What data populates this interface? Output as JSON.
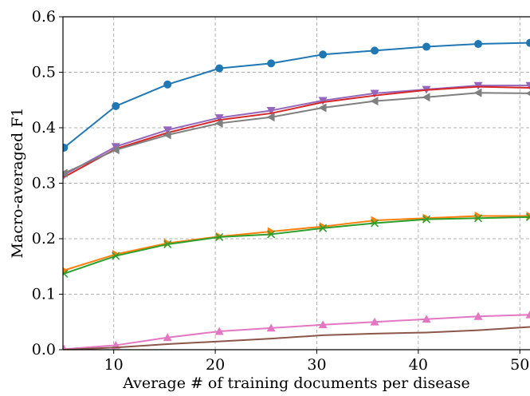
{
  "chart_data": {
    "type": "line",
    "xlabel": "Average # of training documents per disease",
    "ylabel": "Macro-averaged F1",
    "xlim": [
      5,
      51
    ],
    "ylim": [
      0,
      0.6
    ],
    "grid": true,
    "x_ticks": [
      10,
      20,
      30,
      40,
      50
    ],
    "y_ticks": [
      0.0,
      0.1,
      0.2,
      0.3,
      0.4,
      0.5,
      0.6
    ],
    "x_tick_labels": [
      "10",
      "20",
      "30",
      "40",
      "50"
    ],
    "y_tick_labels": [
      "0.0",
      "0.1",
      "0.2",
      "0.3",
      "0.4",
      "0.5",
      "0.6"
    ],
    "x": [
      5.1,
      10.2,
      15.3,
      20.4,
      25.5,
      30.6,
      35.7,
      40.8,
      45.9,
      51.0
    ],
    "series": [
      {
        "color": "#1f77b4",
        "marker": "circle",
        "values": [
          0.364,
          0.439,
          0.478,
          0.507,
          0.516,
          0.532,
          0.539,
          0.546,
          0.551,
          0.553
        ]
      },
      {
        "color": "#9467bd",
        "marker": "triangle-down",
        "values": [
          0.315,
          0.366,
          0.396,
          0.418,
          0.431,
          0.449,
          0.462,
          0.469,
          0.476,
          0.476
        ]
      },
      {
        "color": "#d62728",
        "marker": "none",
        "values": [
          0.311,
          0.362,
          0.391,
          0.414,
          0.426,
          0.446,
          0.458,
          0.468,
          0.474,
          0.472
        ]
      },
      {
        "color": "#7f7f7f",
        "marker": "triangle-left",
        "values": [
          0.318,
          0.36,
          0.387,
          0.408,
          0.419,
          0.436,
          0.448,
          0.455,
          0.463,
          0.462
        ]
      },
      {
        "color": "#ff7f0e",
        "marker": "triangle-right",
        "values": [
          0.143,
          0.172,
          0.192,
          0.204,
          0.213,
          0.222,
          0.233,
          0.237,
          0.241,
          0.241
        ]
      },
      {
        "color": "#2ca02c",
        "marker": "x",
        "values": [
          0.137,
          0.169,
          0.19,
          0.203,
          0.208,
          0.219,
          0.228,
          0.235,
          0.237,
          0.239
        ]
      },
      {
        "color": "#e377c2",
        "marker": "triangle-up",
        "values": [
          0.001,
          0.008,
          0.022,
          0.033,
          0.039,
          0.045,
          0.05,
          0.055,
          0.06,
          0.063
        ]
      },
      {
        "color": "#8c564b",
        "marker": "none",
        "values": [
          0.0,
          0.004,
          0.01,
          0.015,
          0.02,
          0.026,
          0.029,
          0.031,
          0.035,
          0.041
        ]
      }
    ]
  }
}
